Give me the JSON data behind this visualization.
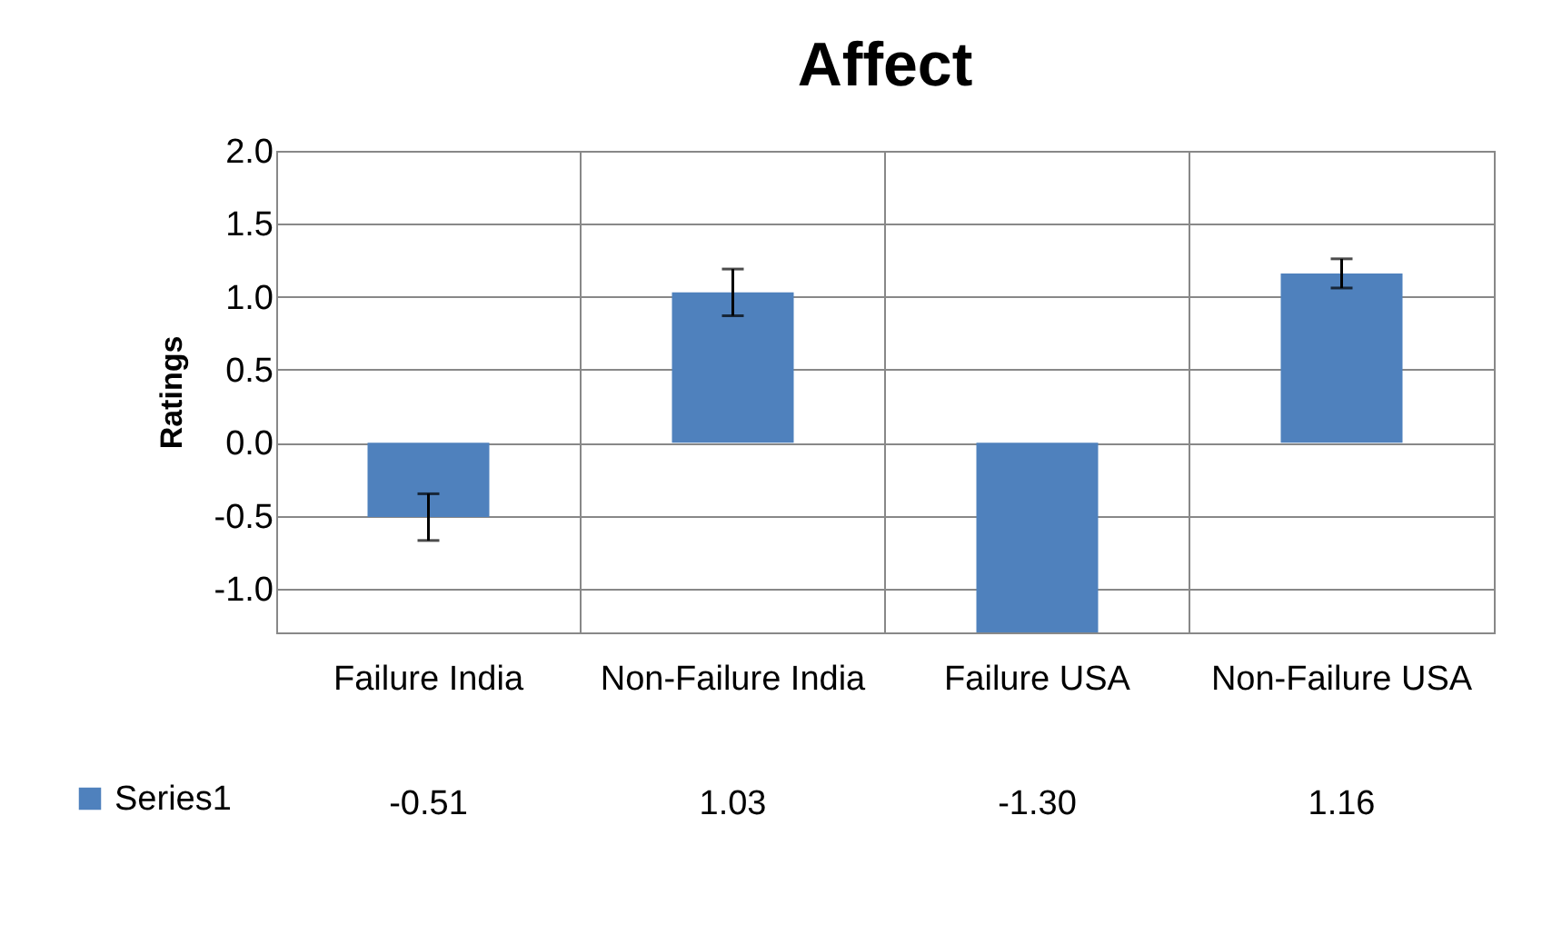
{
  "chart_data": {
    "type": "bar",
    "title": "Affect",
    "ylabel": "Ratings",
    "categories": [
      "Failure India",
      "Non-Failure India",
      "Failure USA",
      "Non-Failure USA"
    ],
    "series": [
      {
        "name": "Series1",
        "color": "#4f81bd",
        "values": [
          -0.51,
          1.03,
          -1.3,
          1.16
        ],
        "errors": [
          0.16,
          0.16,
          null,
          0.1
        ],
        "value_labels": [
          "-0.51",
          "1.03",
          "-1.30",
          "1.16"
        ]
      }
    ],
    "ylim": [
      -1.3,
      2.0
    ],
    "yticks": [
      {
        "value": -1,
        "label": "-1.0"
      },
      {
        "value": -0.5,
        "label": "-0.5"
      },
      {
        "value": 0,
        "label": "0.0"
      },
      {
        "value": 0.5,
        "label": "0.5"
      },
      {
        "value": 1,
        "label": "1.0"
      },
      {
        "value": 1.5,
        "label": "1.5"
      },
      {
        "value": 2,
        "label": "2.0"
      }
    ],
    "grid": "y",
    "legend": "bottom left"
  }
}
